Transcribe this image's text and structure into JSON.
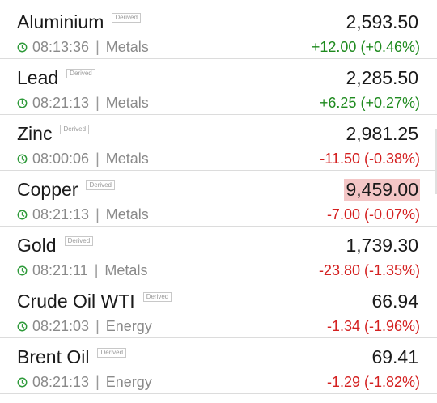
{
  "colors": {
    "positive": "#1e8a1e",
    "negative": "#d42020",
    "highlight": "#f4c6c6"
  },
  "items": [
    {
      "name": "Aluminium",
      "badge": "Derived",
      "time": "08:13:36",
      "sep": "|",
      "category": "Metals",
      "price": "2,593.50",
      "change": "+12.00 (+0.46%)",
      "direction": "up"
    },
    {
      "name": "Lead",
      "badge": "Derived",
      "time": "08:21:13",
      "sep": "|",
      "category": "Metals",
      "price": "2,285.50",
      "change": "+6.25 (+0.27%)",
      "direction": "up"
    },
    {
      "name": "Zinc",
      "badge": "Derived",
      "time": "08:00:06",
      "sep": "|",
      "category": "Metals",
      "price": "2,981.25",
      "change": "-11.50 (-0.38%)",
      "direction": "down"
    },
    {
      "name": "Copper",
      "badge": "Derived",
      "time": "08:21:13",
      "sep": "|",
      "category": "Metals",
      "price": "9,459.00",
      "change": "-7.00 (-0.07%)",
      "direction": "down",
      "highlighted": true
    },
    {
      "name": "Gold",
      "badge": "Derived",
      "time": "08:21:11",
      "sep": "|",
      "category": "Metals",
      "price": "1,739.30",
      "change": "-23.80 (-1.35%)",
      "direction": "down"
    },
    {
      "name": "Crude Oil WTI",
      "badge": "Derived",
      "time": "08:21:03",
      "sep": "|",
      "category": "Energy",
      "price": "66.94",
      "change": "-1.34 (-1.96%)",
      "direction": "down"
    },
    {
      "name": "Brent Oil",
      "badge": "Derived",
      "time": "08:21:13",
      "sep": "|",
      "category": "Energy",
      "price": "69.41",
      "change": "-1.29 (-1.82%)",
      "direction": "down"
    }
  ]
}
